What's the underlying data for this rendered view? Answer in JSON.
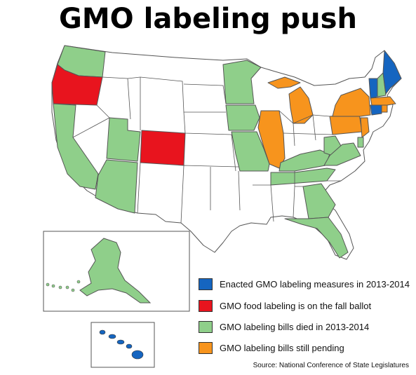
{
  "title": "GMO labeling push",
  "colors": {
    "enacted": "#1565c0",
    "ballot": "#e8141e",
    "died": "#8fcf8a",
    "pending": "#f7941d",
    "none": "#ffffff",
    "border": "#555555"
  },
  "legend": [
    {
      "key": "enacted",
      "label": "Enacted GMO labeling measures in 2013-2014"
    },
    {
      "key": "ballot",
      "label": "GMO food labeling is on the fall ballot"
    },
    {
      "key": "died",
      "label": "GMO labeling bills died in 2013-2014"
    },
    {
      "key": "pending",
      "label": "GMO labeling bills still pending"
    }
  ],
  "source": "Source: National Conference of State Legislatures",
  "states": {
    "enacted": [
      "Maine",
      "Vermont",
      "Connecticut"
    ],
    "ballot": [
      "Oregon",
      "Colorado"
    ],
    "died": [
      "Washington",
      "California",
      "Utah",
      "Arizona",
      "Minnesota",
      "Iowa",
      "Missouri",
      "Tennessee",
      "Kentucky",
      "West Virginia",
      "Virginia",
      "Georgia",
      "Florida",
      "New Hampshire",
      "Delaware",
      "Alaska",
      "Hawaii"
    ],
    "pending": [
      "Michigan",
      "Illinois",
      "Pennsylvania",
      "New York",
      "New Jersey",
      "Massachusetts",
      "Rhode Island"
    ]
  }
}
